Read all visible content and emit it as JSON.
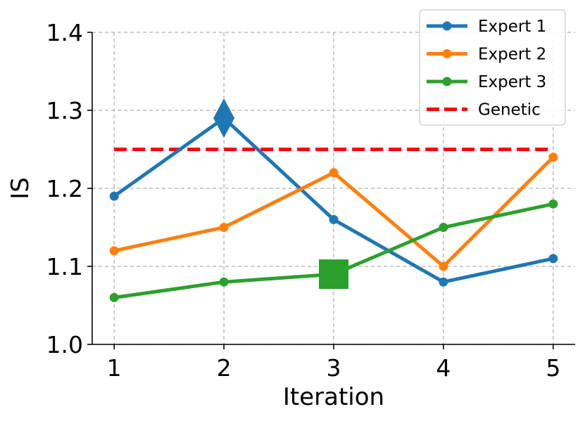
{
  "chart_data": {
    "type": "line",
    "xlabel": "Iteration",
    "ylabel": "IS",
    "x": [
      1,
      2,
      3,
      4,
      5
    ],
    "xticks": [
      "1",
      "2",
      "3",
      "4",
      "5"
    ],
    "yticks": [
      "1.0",
      "1.1",
      "1.2",
      "1.3",
      "1.4"
    ],
    "xlim": [
      0.8,
      5.2
    ],
    "ylim": [
      1.0,
      1.4
    ],
    "grid": true,
    "legend_position": "top-right",
    "series": [
      {
        "name": "Expert 1",
        "color": "#1f77b4",
        "values": [
          1.19,
          1.29,
          1.16,
          1.08,
          1.11
        ],
        "highlight": {
          "x": 2,
          "y": 1.29,
          "marker": "diamond"
        }
      },
      {
        "name": "Expert 2",
        "color": "#ff7f0e",
        "values": [
          1.12,
          1.15,
          1.22,
          1.1,
          1.24
        ]
      },
      {
        "name": "Expert 3",
        "color": "#2ca02c",
        "values": [
          1.06,
          1.08,
          1.09,
          1.15,
          1.18
        ],
        "highlight": {
          "x": 3,
          "y": 1.09,
          "marker": "square"
        }
      }
    ],
    "reference_line": {
      "name": "Genetic",
      "color": "#ff0000",
      "value": 1.25,
      "style": "dashed"
    }
  }
}
